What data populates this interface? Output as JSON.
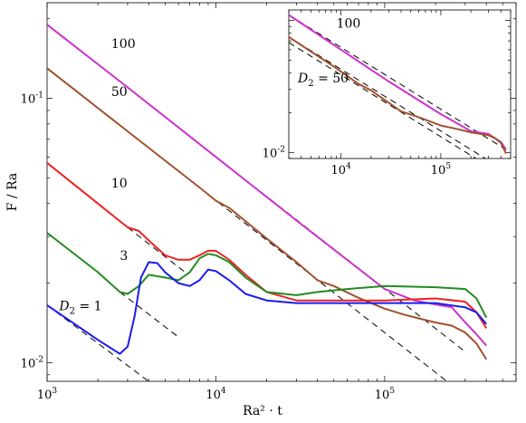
{
  "chart_data": [
    {
      "type": "line",
      "title": "",
      "xlabel": "Ra² · t",
      "ylabel": "F / Ra",
      "xscale": "log",
      "yscale": "log",
      "xlim": [
        1000,
        600000
      ],
      "ylim": [
        0.0085,
        0.23
      ],
      "xticks": [
        {
          "base": "10",
          "exp": "3",
          "value": 1000
        },
        {
          "base": "10",
          "exp": "4",
          "value": 10000
        },
        {
          "base": "10",
          "exp": "5",
          "value": 100000
        }
      ],
      "yticks": [
        {
          "base": "10",
          "exp": "-2",
          "value": 0.01
        },
        {
          "base": "10",
          "exp": "-1",
          "value": 0.1
        }
      ],
      "annotations": [
        {
          "text": "100",
          "x": 2400,
          "y": 0.155
        },
        {
          "text": "50",
          "x": 2400,
          "y": 0.102
        },
        {
          "text": "10",
          "x": 2400,
          "y": 0.046
        },
        {
          "text": "3",
          "x": 2700,
          "y": 0.0245
        },
        {
          "text": "D",
          "sub": "2",
          "rest": " = 1",
          "x": 1180,
          "y": 0.0158
        }
      ],
      "series": [
        {
          "color": "#cc33cc",
          "x": [
            1000,
            3000,
            10000,
            30000,
            100000,
            150000,
            200000,
            250000,
            300000,
            350000,
            400000
          ],
          "y": [
            0.19,
            0.11,
            0.06,
            0.0345,
            0.019,
            0.0172,
            0.0166,
            0.0162,
            0.0142,
            0.0128,
            0.0116
          ]
        },
        {
          "color": "#a0522d",
          "x": [
            1000,
            3000,
            8000,
            10000,
            12000,
            20000,
            30000,
            40000,
            50000,
            70000,
            100000,
            130000,
            160000,
            200000,
            250000,
            300000,
            350000,
            400000
          ],
          "y": [
            0.13,
            0.075,
            0.046,
            0.041,
            0.0385,
            0.0295,
            0.024,
            0.0205,
            0.0195,
            0.0176,
            0.016,
            0.0152,
            0.0147,
            0.0142,
            0.0138,
            0.013,
            0.0118,
            0.0103
          ]
        },
        {
          "color": "#ee2222",
          "x": [
            1000,
            2000,
            3000,
            3500,
            4000,
            5000,
            6000,
            7000,
            8000,
            9000,
            10000,
            12000,
            15000,
            20000,
            30000,
            50000,
            100000,
            200000,
            300000,
            350000,
            400000
          ],
          "y": [
            0.057,
            0.04,
            0.0325,
            0.0315,
            0.029,
            0.0255,
            0.0245,
            0.0245,
            0.0255,
            0.0265,
            0.0265,
            0.0245,
            0.0215,
            0.0185,
            0.0172,
            0.0172,
            0.0172,
            0.0175,
            0.017,
            0.0155,
            0.0135
          ]
        },
        {
          "color": "#228b22",
          "x": [
            1000,
            2000,
            2700,
            3000,
            3500,
            4000,
            5000,
            6000,
            7000,
            8000,
            9000,
            10000,
            12000,
            15000,
            20000,
            30000,
            40000,
            60000,
            100000,
            200000,
            300000,
            350000,
            400000
          ],
          "y": [
            0.031,
            0.022,
            0.0185,
            0.0182,
            0.0195,
            0.0215,
            0.021,
            0.0205,
            0.022,
            0.0248,
            0.0258,
            0.0255,
            0.024,
            0.021,
            0.0185,
            0.018,
            0.0185,
            0.019,
            0.0195,
            0.0193,
            0.019,
            0.0175,
            0.0148
          ]
        },
        {
          "color": "#1a1aee",
          "x": [
            1000,
            2000,
            2700,
            3000,
            3300,
            3600,
            4000,
            4500,
            5000,
            6000,
            7000,
            8000,
            9000,
            10000,
            12000,
            15000,
            20000,
            30000,
            50000,
            100000,
            200000,
            300000,
            350000,
            400000
          ],
          "y": [
            0.0165,
            0.0122,
            0.0108,
            0.0115,
            0.015,
            0.021,
            0.024,
            0.0238,
            0.022,
            0.02,
            0.0195,
            0.0205,
            0.0225,
            0.0222,
            0.0205,
            0.0182,
            0.0172,
            0.0168,
            0.0168,
            0.0168,
            0.0168,
            0.0162,
            0.0155,
            0.014
          ]
        }
      ],
      "reference_lines": [
        {
          "x": [
            1000,
            300000
          ],
          "y": [
            0.19,
            0.011
          ]
        },
        {
          "x": [
            1000,
            300000
          ],
          "y": [
            0.13,
            0.0075
          ]
        },
        {
          "x": [
            3000,
            6500
          ],
          "y": [
            0.0325,
            0.0221
          ]
        },
        {
          "x": [
            2700,
            6000
          ],
          "y": [
            0.0185,
            0.0125
          ]
        },
        {
          "x": [
            1000,
            4200
          ],
          "y": [
            0.0165,
            0.0083
          ]
        }
      ]
    },
    {
      "type": "line",
      "title": "",
      "xscale": "log",
      "yscale": "log",
      "xlim": [
        3000,
        500000
      ],
      "ylim": [
        0.009,
        0.12
      ],
      "xticks": [
        {
          "base": "10",
          "exp": "4",
          "value": 10000
        },
        {
          "base": "10",
          "exp": "5",
          "value": 100000
        }
      ],
      "yticks": [
        {
          "base": "10",
          "exp": "-2",
          "value": 0.01
        }
      ],
      "annotations": [
        {
          "text": "100",
          "x": 9000,
          "y": 0.088
        },
        {
          "text": "D",
          "sub": "2",
          "rest": " = 50",
          "x": 3700,
          "y": 0.034
        }
      ],
      "series": [
        {
          "color": "#cc33cc",
          "x": [
            3000,
            10000,
            30000,
            100000,
            200000,
            300000,
            350000,
            400000,
            450000
          ],
          "y": [
            0.11,
            0.06,
            0.0345,
            0.0195,
            0.0145,
            0.0138,
            0.0128,
            0.012,
            0.0105
          ]
        },
        {
          "color": "#a0522d",
          "x": [
            3000,
            8000,
            10000,
            15000,
            20000,
            40000,
            60000,
            100000,
            150000,
            200000,
            300000,
            350000,
            400000,
            450000
          ],
          "y": [
            0.075,
            0.046,
            0.041,
            0.033,
            0.0295,
            0.0205,
            0.0185,
            0.016,
            0.015,
            0.0142,
            0.0135,
            0.0128,
            0.0118,
            0.0098
          ]
        }
      ],
      "reference_lines": [
        {
          "x": [
            3000,
            450000
          ],
          "y": [
            0.11,
            0.0105
          ]
        },
        {
          "x": [
            3000,
            450000
          ],
          "y": [
            0.075,
            0.0072
          ]
        },
        {
          "x": [
            3000,
            450000
          ],
          "y": [
            0.068,
            0.0065
          ]
        }
      ]
    }
  ]
}
